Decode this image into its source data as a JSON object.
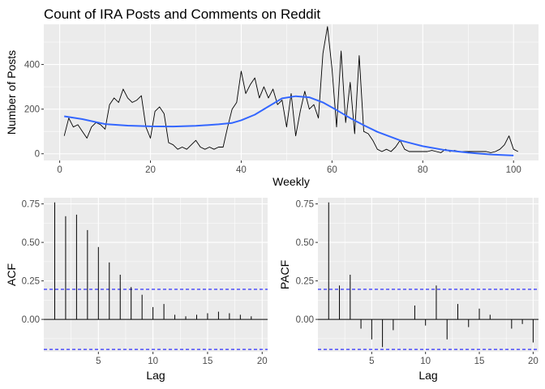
{
  "chart_data": [
    {
      "id": "ts",
      "type": "line",
      "title": "Count of IRA Posts and Comments on Reddit",
      "xlabel": "Weekly",
      "ylabel": "Number of Posts",
      "xlim": [
        -3.5,
        105.5
      ],
      "ylim": [
        -30,
        580
      ],
      "x_ticks": [
        0,
        20,
        40,
        60,
        80,
        100
      ],
      "y_ticks": [
        0,
        200,
        400
      ],
      "grid": true,
      "series": [
        {
          "style": "raw",
          "color": "#000000",
          "x": [
            1,
            2,
            3,
            4,
            5,
            6,
            7,
            8,
            9,
            10,
            11,
            12,
            13,
            14,
            15,
            16,
            17,
            18,
            19,
            20,
            21,
            22,
            23,
            24,
            25,
            26,
            27,
            28,
            29,
            30,
            31,
            32,
            33,
            34,
            35,
            36,
            37,
            38,
            39,
            40,
            41,
            42,
            43,
            44,
            45,
            46,
            47,
            48,
            49,
            50,
            51,
            52,
            53,
            54,
            55,
            56,
            57,
            58,
            59,
            60,
            61,
            62,
            63,
            64,
            65,
            66,
            67,
            68,
            69,
            70,
            71,
            72,
            73,
            74,
            75,
            76,
            77,
            78,
            79,
            80,
            81,
            82,
            83,
            84,
            85,
            86,
            87,
            88,
            89,
            90,
            91,
            92,
            93,
            94,
            95,
            96,
            97,
            98,
            99,
            100,
            101
          ],
          "y": [
            80,
            160,
            120,
            130,
            100,
            70,
            120,
            140,
            130,
            110,
            220,
            250,
            230,
            290,
            250,
            230,
            240,
            260,
            120,
            70,
            190,
            210,
            180,
            50,
            40,
            20,
            30,
            20,
            40,
            60,
            30,
            20,
            30,
            20,
            30,
            30,
            120,
            200,
            230,
            370,
            270,
            310,
            340,
            250,
            300,
            250,
            290,
            220,
            240,
            120,
            270,
            80,
            190,
            280,
            200,
            220,
            160,
            450,
            570,
            380,
            120,
            460,
            140,
            320,
            90,
            440,
            100,
            90,
            60,
            20,
            10,
            20,
            10,
            30,
            60,
            20,
            10,
            10,
            10,
            10,
            10,
            15,
            10,
            5,
            20,
            10,
            15,
            10,
            10,
            10,
            10,
            10,
            10,
            10,
            5,
            10,
            20,
            40,
            80,
            20,
            10
          ]
        },
        {
          "style": "smooth",
          "color": "#3366ff",
          "x": [
            1,
            5,
            10,
            15,
            20,
            25,
            30,
            35,
            38,
            40,
            43,
            46,
            49,
            52,
            55,
            58,
            61,
            64,
            67,
            70,
            75,
            80,
            85,
            90,
            95,
            100
          ],
          "y": [
            168,
            155,
            133,
            126,
            123,
            122,
            125,
            132,
            138,
            150,
            175,
            212,
            248,
            258,
            253,
            230,
            196,
            160,
            128,
            98,
            60,
            34,
            16,
            5,
            -3,
            -8
          ]
        }
      ]
    },
    {
      "id": "acf",
      "type": "bar",
      "xlabel": "Lag",
      "ylabel": "ACF",
      "xlim": [
        0,
        20.5
      ],
      "ylim": [
        -0.21,
        0.79
      ],
      "x_ticks": [
        5,
        10,
        15,
        20
      ],
      "y_ticks": [
        0.0,
        0.25,
        0.5,
        0.75
      ],
      "y_tick_labels": [
        "0.00",
        "0.25",
        "0.50",
        "0.75"
      ],
      "confidence_bounds": [
        0.195,
        -0.195
      ],
      "lags": [
        1,
        2,
        3,
        4,
        5,
        6,
        7,
        8,
        9,
        10,
        11,
        12,
        13,
        14,
        15,
        16,
        17,
        18,
        19
      ],
      "values": [
        0.76,
        0.67,
        0.68,
        0.58,
        0.47,
        0.37,
        0.29,
        0.21,
        0.16,
        0.08,
        0.1,
        0.03,
        0.02,
        0.03,
        0.04,
        0.05,
        0.04,
        0.03,
        0.02
      ]
    },
    {
      "id": "pacf",
      "type": "bar",
      "xlabel": "Lag",
      "ylabel": "PACF",
      "xlim": [
        0,
        20.5
      ],
      "ylim": [
        -0.21,
        0.79
      ],
      "x_ticks": [
        5,
        10,
        15,
        20
      ],
      "y_ticks": [
        0.0,
        0.25,
        0.5,
        0.75
      ],
      "y_tick_labels": [
        "0.00",
        "0.25",
        "0.50",
        "0.75"
      ],
      "confidence_bounds": [
        0.195,
        -0.195
      ],
      "lags": [
        1,
        2,
        3,
        4,
        5,
        6,
        7,
        8,
        9,
        10,
        11,
        12,
        13,
        14,
        15,
        16,
        17,
        18,
        19,
        20
      ],
      "values": [
        0.76,
        0.22,
        0.29,
        -0.06,
        -0.13,
        -0.18,
        -0.07,
        0.0,
        0.09,
        -0.04,
        0.22,
        -0.13,
        0.1,
        -0.05,
        0.07,
        0.03,
        0.0,
        -0.06,
        -0.03,
        -0.15
      ]
    }
  ]
}
